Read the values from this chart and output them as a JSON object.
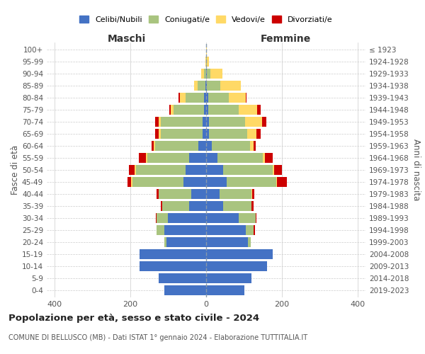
{
  "age_groups": [
    "0-4",
    "5-9",
    "10-14",
    "15-19",
    "20-24",
    "25-29",
    "30-34",
    "35-39",
    "40-44",
    "45-49",
    "50-54",
    "55-59",
    "60-64",
    "65-69",
    "70-74",
    "75-79",
    "80-84",
    "85-89",
    "90-94",
    "95-99",
    "100+"
  ],
  "birth_years": [
    "2019-2023",
    "2014-2018",
    "2009-2013",
    "2004-2008",
    "1999-2003",
    "1994-1998",
    "1989-1993",
    "1984-1988",
    "1979-1983",
    "1974-1978",
    "1969-1973",
    "1964-1968",
    "1959-1963",
    "1954-1958",
    "1949-1953",
    "1944-1948",
    "1939-1943",
    "1934-1938",
    "1929-1933",
    "1924-1928",
    "≤ 1923"
  ],
  "colors": {
    "celibi": "#4472C4",
    "coniugati": "#A9C47F",
    "vedovi": "#FFD966",
    "divorziati": "#CC0000"
  },
  "males": {
    "celibi": [
      110,
      125,
      175,
      175,
      105,
      110,
      100,
      45,
      40,
      60,
      55,
      45,
      20,
      10,
      10,
      5,
      5,
      2,
      0,
      0,
      0
    ],
    "coniugati": [
      0,
      0,
      0,
      0,
      5,
      20,
      30,
      70,
      85,
      135,
      130,
      110,
      115,
      110,
      110,
      80,
      50,
      20,
      5,
      0,
      0
    ],
    "vedovi": [
      0,
      0,
      0,
      0,
      0,
      0,
      0,
      0,
      1,
      2,
      3,
      3,
      3,
      5,
      5,
      8,
      15,
      10,
      8,
      2,
      0
    ],
    "divorziati": [
      0,
      0,
      0,
      0,
      0,
      0,
      3,
      5,
      5,
      10,
      15,
      20,
      5,
      10,
      10,
      5,
      2,
      0,
      0,
      0,
      0
    ]
  },
  "females": {
    "celibi": [
      100,
      120,
      160,
      175,
      110,
      105,
      85,
      45,
      35,
      55,
      45,
      30,
      15,
      8,
      8,
      5,
      5,
      2,
      2,
      0,
      0
    ],
    "coniugati": [
      0,
      0,
      0,
      0,
      8,
      20,
      45,
      75,
      85,
      130,
      130,
      120,
      100,
      100,
      95,
      80,
      55,
      35,
      10,
      2,
      0
    ],
    "vedovi": [
      0,
      0,
      0,
      0,
      0,
      0,
      0,
      0,
      2,
      2,
      5,
      5,
      10,
      25,
      45,
      50,
      45,
      55,
      30,
      5,
      2
    ],
    "divorziati": [
      0,
      0,
      0,
      0,
      0,
      3,
      3,
      5,
      5,
      25,
      20,
      20,
      5,
      10,
      10,
      8,
      2,
      0,
      0,
      0,
      0
    ]
  },
  "title": "Popolazione per età, sesso e stato civile - 2024",
  "subtitle": "COMUNE DI BELLUSCO (MB) - Dati ISTAT 1° gennaio 2024 - Elaborazione TUTTITALIA.IT",
  "ylabel_left": "Fasce di età",
  "ylabel_right": "Anni di nascita",
  "xlabel_left": "Maschi",
  "xlabel_right": "Femmine",
  "xlim": 420,
  "legend_labels": [
    "Celibi/Nubili",
    "Coniugati/e",
    "Vedovi/e",
    "Divorziati/e"
  ],
  "background_color": "#FFFFFF",
  "grid_color": "#CCCCCC"
}
